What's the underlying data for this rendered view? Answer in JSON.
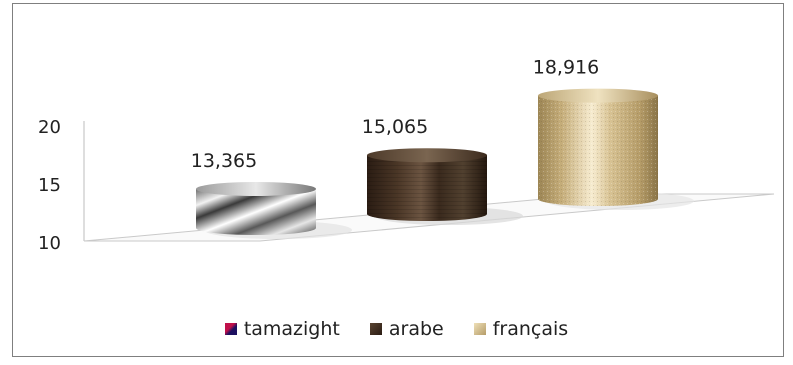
{
  "chart_data": {
    "type": "bar",
    "style": "3d-cylinder",
    "categories": [
      "tamazight",
      "arabe",
      "français"
    ],
    "values": [
      13.365,
      15.065,
      18.916
    ],
    "value_labels": [
      "13,365",
      "15,065",
      "18,916"
    ],
    "ylim": [
      10,
      20
    ],
    "yticks": [
      "10",
      "15",
      "20"
    ],
    "title": "",
    "xlabel": "",
    "ylabel": "",
    "grid": false,
    "legend_position": "bottom",
    "series_colors": [
      "#1f1660",
      "#3b2a1e",
      "#c8b482"
    ],
    "legend": [
      {
        "label": "tamazight",
        "color": "#2a1a6a"
      },
      {
        "label": "arabe",
        "color": "#3b2a1e"
      },
      {
        "label": "français",
        "color": "#c8b482"
      }
    ]
  }
}
